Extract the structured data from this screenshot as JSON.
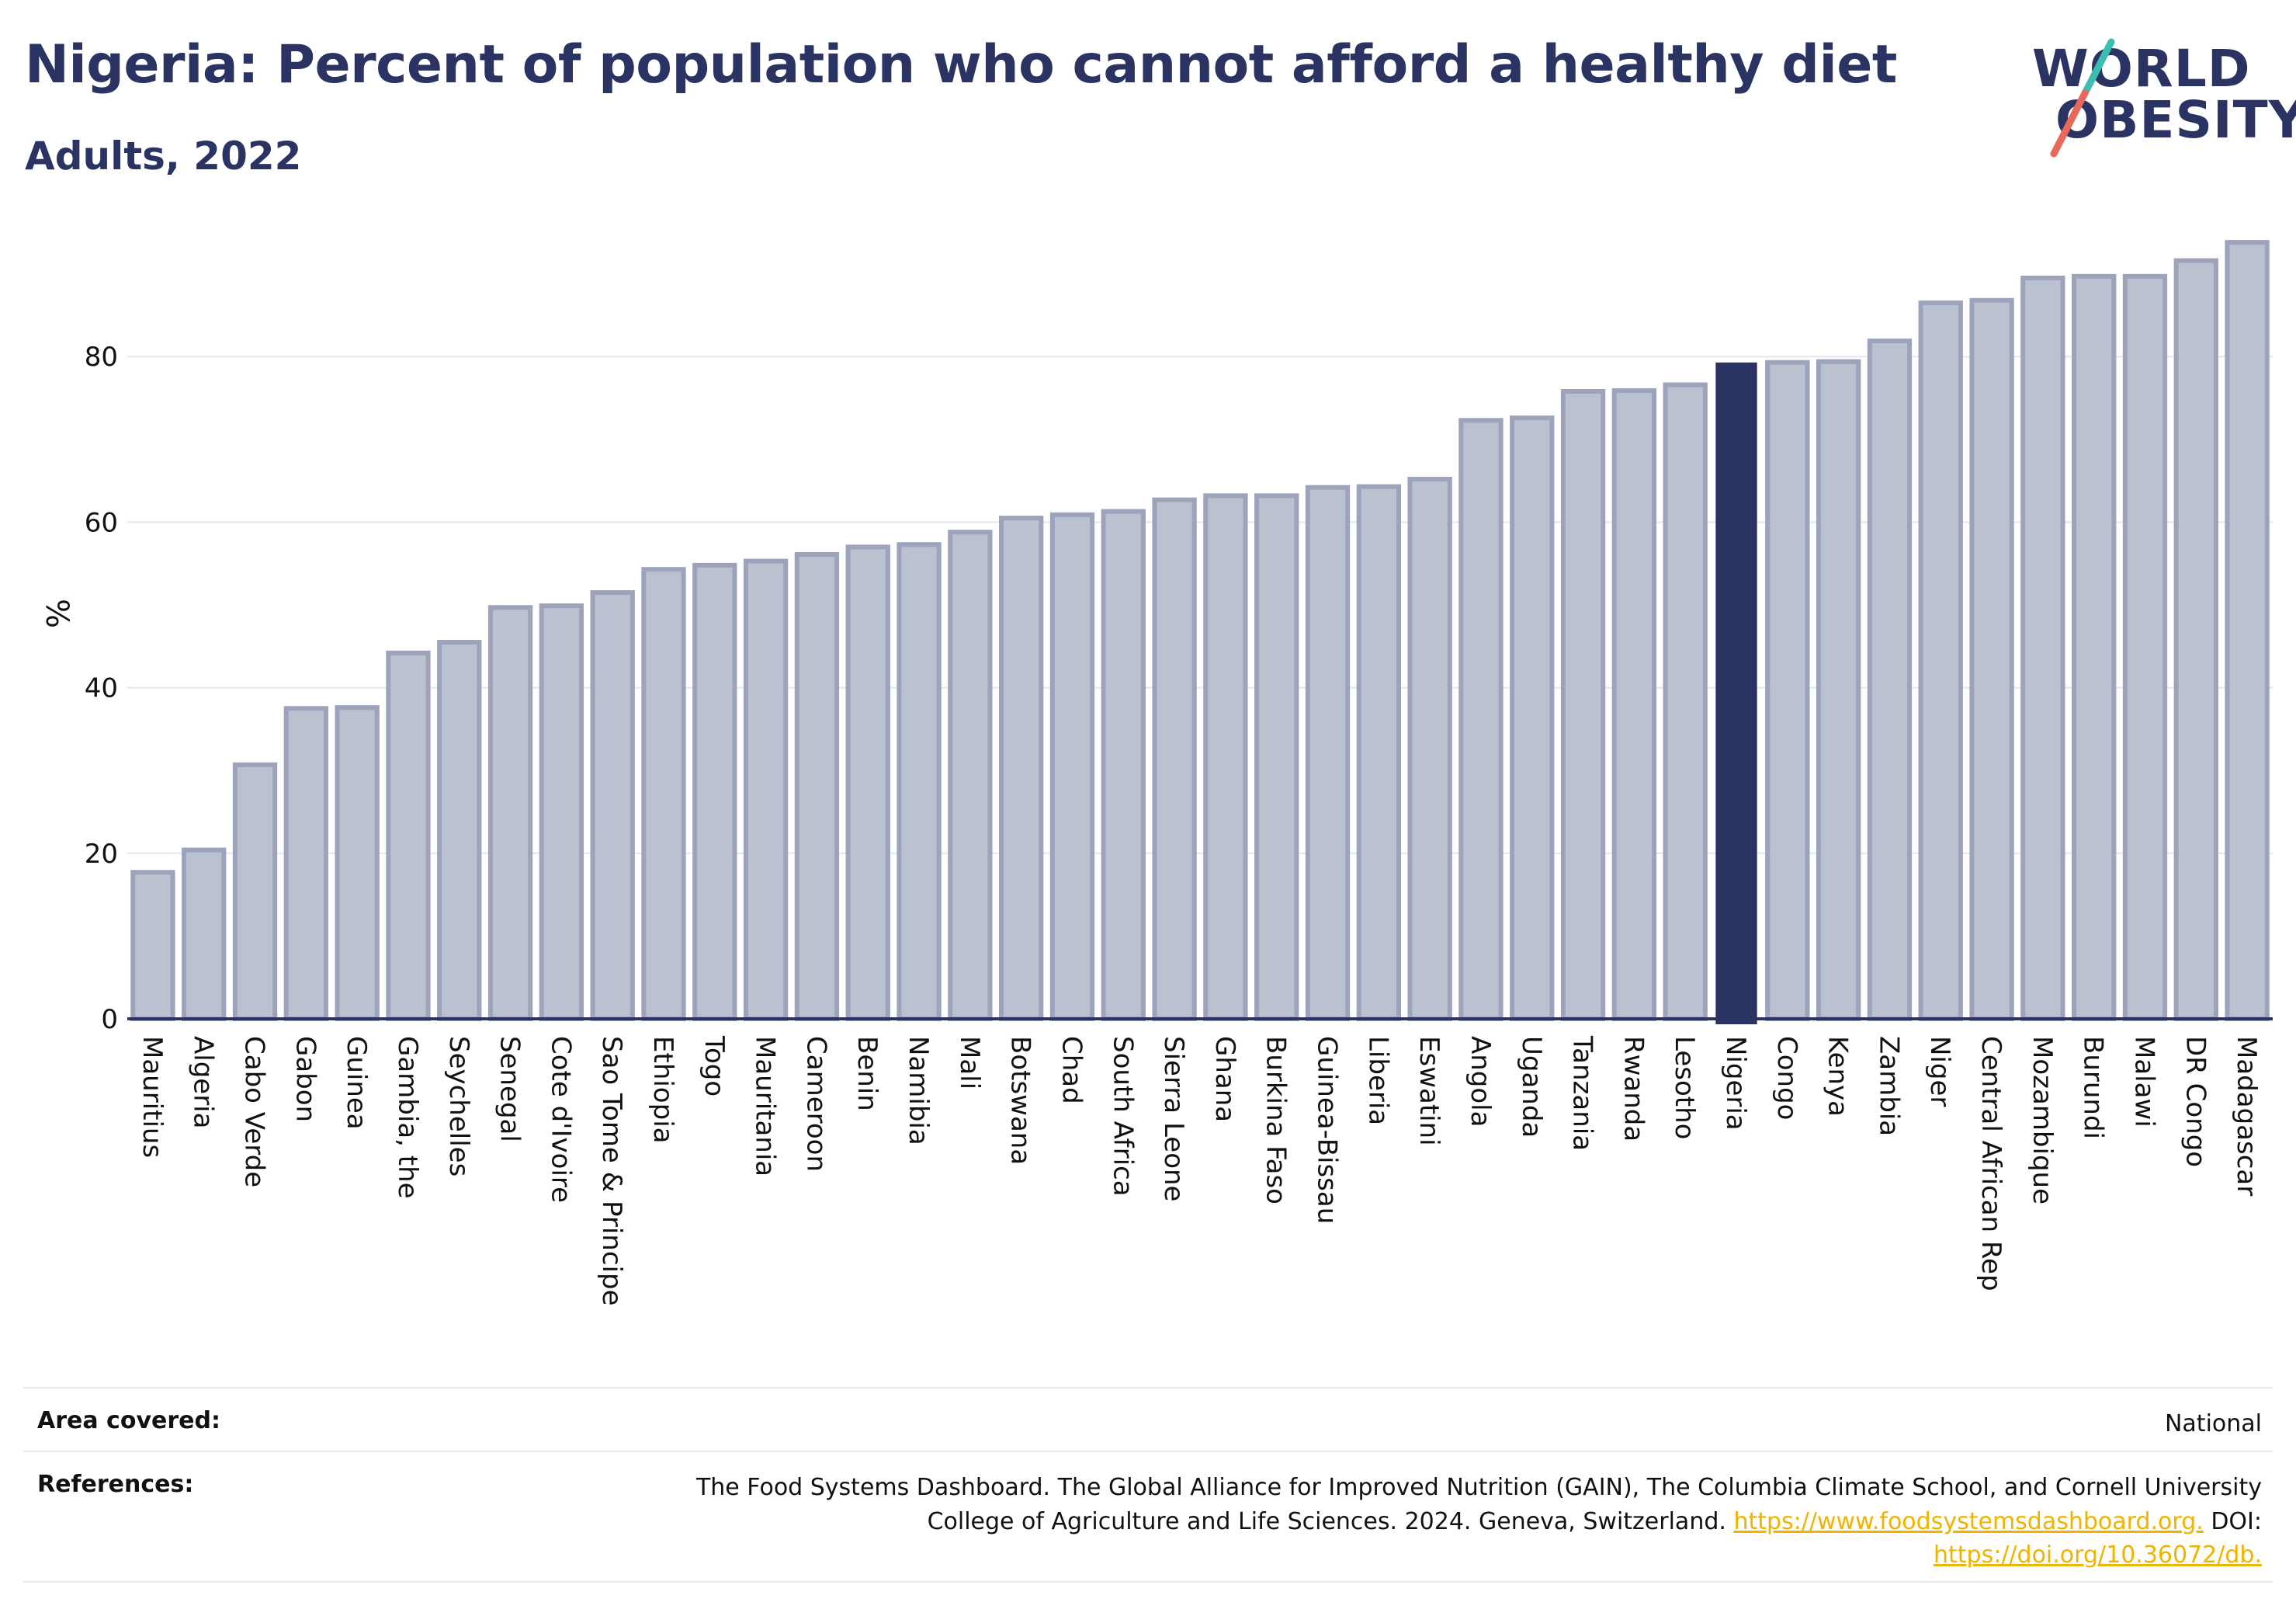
{
  "header": {
    "title": "Nigeria: Percent of population who cannot afford a healthy diet",
    "subtitle": "Adults, 2022"
  },
  "logo": {
    "line1": "WORLD",
    "line2": "OBESITY",
    "colors": {
      "text": "#2a3361",
      "slash_top": "#3dbcb0",
      "slash_bottom": "#e8685a"
    }
  },
  "colors": {
    "bar_fill": "#bcc1d0",
    "bar_stroke": "#9da3bb",
    "highlight_fill": "#2a3361",
    "axis": "#2a3361",
    "grid": "#e4e6ef",
    "text": "#111111"
  },
  "chart_data": {
    "type": "bar",
    "title": "Nigeria: Percent of population who cannot afford a healthy diet",
    "subtitle": "Adults, 2022",
    "ylabel": "%",
    "xlabel": "",
    "ylim": [
      0,
      94
    ],
    "yticks": [
      0,
      20,
      40,
      60,
      80
    ],
    "grid": true,
    "highlight": "Nigeria",
    "categories": [
      "Mauritius",
      "Algeria",
      "Cabo Verde",
      "Gabon",
      "Guinea",
      "Gambia, the",
      "Seychelles",
      "Senegal",
      "Cote d'Ivoire",
      "Sao Tome & Principe",
      "Ethiopia",
      "Togo",
      "Mauritania",
      "Cameroon",
      "Benin",
      "Namibia",
      "Mali",
      "Botswana",
      "Chad",
      "South Africa",
      "Sierra Leone",
      "Ghana",
      "Burkina Faso",
      "Guinea-Bissau",
      "Liberia",
      "Eswatini",
      "Angola",
      "Uganda",
      "Tanzania",
      "Rwanda",
      "Lesotho",
      "Nigeria",
      "Congo",
      "Kenya",
      "Zambia",
      "Niger",
      "Central African Rep",
      "Mozambique",
      "Burundi",
      "Malawi",
      "DR Congo",
      "Madagascar"
    ],
    "values": [
      17.7,
      20.4,
      30.7,
      37.5,
      37.6,
      44.2,
      45.5,
      49.7,
      49.9,
      51.5,
      54.3,
      54.8,
      55.3,
      56.1,
      57.0,
      57.3,
      58.8,
      60.5,
      60.9,
      61.3,
      62.7,
      63.2,
      63.2,
      64.2,
      64.3,
      65.2,
      72.3,
      72.6,
      75.8,
      75.9,
      76.6,
      79.2,
      79.3,
      79.4,
      81.9,
      86.5,
      86.8,
      89.5,
      89.7,
      89.7,
      91.6,
      93.8
    ]
  },
  "footer": {
    "area_label": "Area covered:",
    "area_value": "National",
    "refs_label": "References:",
    "refs_line1": "The Food Systems Dashboard. The Global Alliance for Improved Nutrition (GAIN), The Columbia Climate School, and Cornell University",
    "refs_line2_text": "College of Agriculture and Life Sciences. 2024. Geneva, Switzerland.",
    "refs_link1": "https://www.foodsystemsdashboard.org.",
    "refs_doi": "DOI:",
    "refs_link2": "https://doi.org/10.36072/db."
  }
}
